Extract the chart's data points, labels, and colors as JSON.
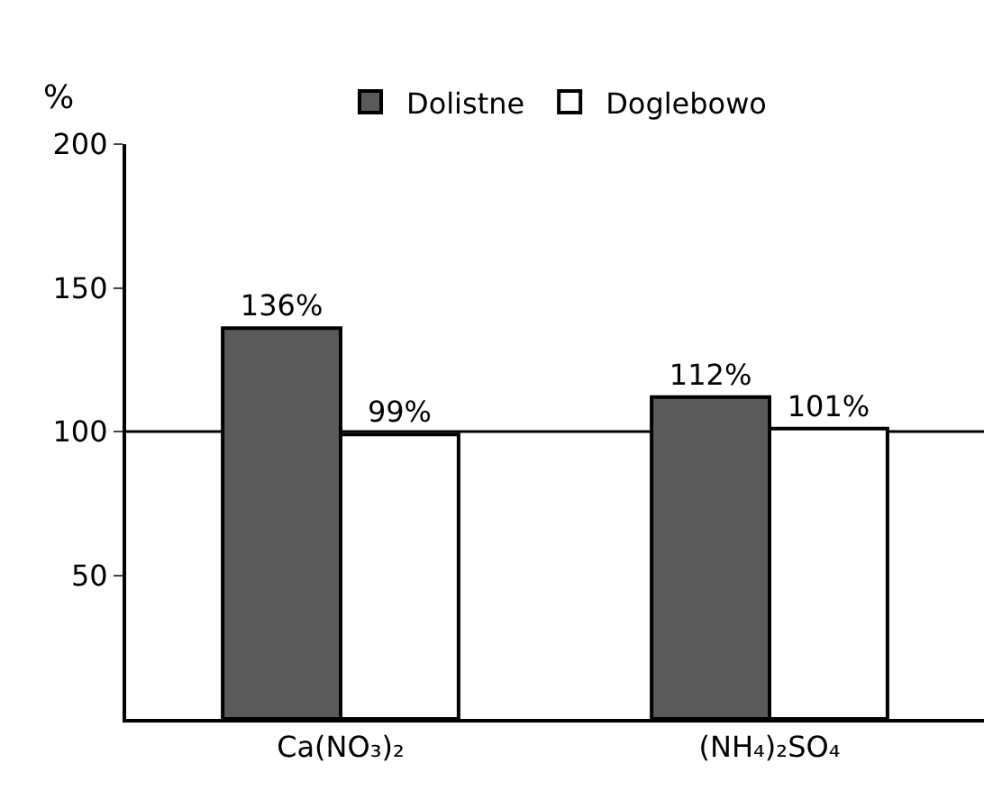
{
  "chart_data": {
    "type": "bar",
    "ylabel": "%",
    "categories": [
      "Ca(NO₃)₂",
      "(NH₄)₂SO₄"
    ],
    "series": [
      {
        "name": "Dolistne",
        "color": "#5a5a5a",
        "values": [
          136,
          112
        ],
        "value_labels": [
          "136%",
          "112%"
        ]
      },
      {
        "name": "Doglebowo",
        "color": "#ffffff",
        "values": [
          99,
          101
        ],
        "value_labels": [
          "99%",
          "101%"
        ]
      }
    ],
    "ylim": [
      0,
      200
    ],
    "yticks": [
      50,
      100,
      150,
      200
    ],
    "grid": false,
    "legend": "top",
    "ref_lines": [
      {
        "axis": "y",
        "value": 100,
        "color": "#000000",
        "line_style": "solid"
      }
    ]
  }
}
